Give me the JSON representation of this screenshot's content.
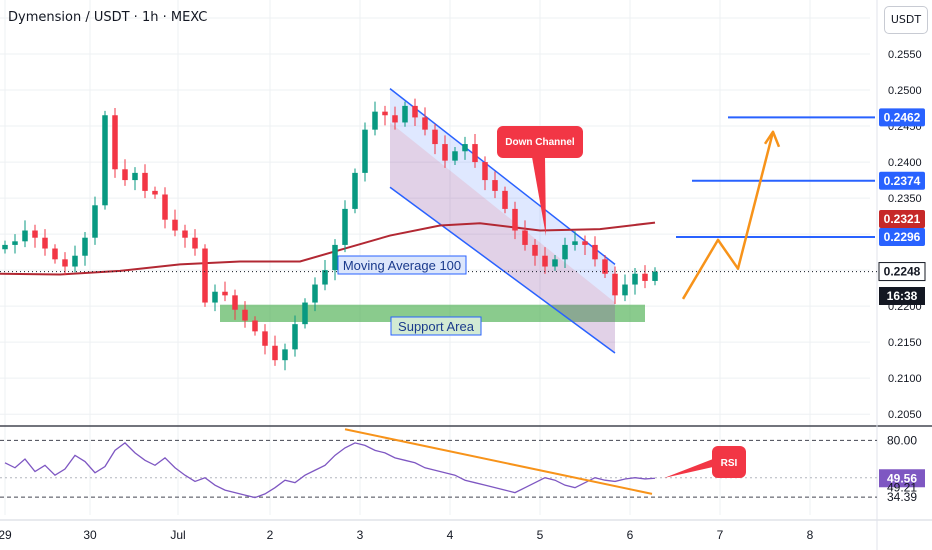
{
  "header": {
    "title": "Dymension / USDT · 1h · MEXC",
    "currency_button": "USDT"
  },
  "colors": {
    "candle_up": "#089981",
    "candle_down": "#f23645",
    "ma": "#b22833",
    "channel": "#2962ff",
    "support": "#4caf50",
    "orange": "#f7931a",
    "rsi": "#7e57c2",
    "level_blue": "#2962ff"
  },
  "chart_data": {
    "type": "candlestick",
    "y_axis": {
      "ylim": [
        0.2035,
        0.2625
      ],
      "ticks": [
        "0.2600",
        "0.2550",
        "0.2500",
        "0.2450",
        "0.2400",
        "0.2350",
        "0.2300",
        "0.2250",
        "0.2200",
        "0.2150",
        "0.2100",
        "0.2050"
      ]
    },
    "x_axis": {
      "ticks": [
        "29",
        "30",
        "Jul",
        "2",
        "3",
        "4",
        "5",
        "6",
        "7",
        "8"
      ]
    },
    "close_series_approx": [
      0.2285,
      0.229,
      0.2305,
      0.2295,
      0.228,
      0.2265,
      0.2255,
      0.227,
      0.2295,
      0.234,
      0.2465,
      0.239,
      0.2375,
      0.2385,
      0.236,
      0.2355,
      0.232,
      0.2305,
      0.2295,
      0.228,
      0.2205,
      0.222,
      0.2215,
      0.2195,
      0.218,
      0.2165,
      0.2145,
      0.2125,
      0.214,
      0.2175,
      0.2205,
      0.223,
      0.225,
      0.2285,
      0.2335,
      0.2385,
      0.2445,
      0.247,
      0.2465,
      0.2455,
      0.2478,
      0.2462,
      0.2445,
      0.2425,
      0.2402,
      0.2415,
      0.2425,
      0.24,
      0.2375,
      0.236,
      0.2335,
      0.2305,
      0.2285,
      0.227,
      0.2255,
      0.2265,
      0.2285,
      0.229,
      0.2285,
      0.2265,
      0.2245,
      0.2215,
      0.223,
      0.2245,
      0.2235,
      0.2248
    ],
    "price_labels": [
      {
        "text": "0.2462",
        "value": 0.2462,
        "color": "#2962ff"
      },
      {
        "text": "0.2374",
        "value": 0.2374,
        "color": "#2962ff"
      },
      {
        "text": "0.2321",
        "value": 0.2321,
        "color": "#c62828"
      },
      {
        "text": "0.2296",
        "value": 0.2296,
        "color": "#2962ff"
      },
      {
        "text": "0.2248",
        "value": 0.2248,
        "color": "#131722"
      },
      {
        "text": "16:38",
        "value": null,
        "color": "#131722"
      }
    ],
    "annotations": {
      "down_channel": "Down Channel",
      "moving_average": "Moving Average 100",
      "support_area": "Support Area",
      "rsi_tag": "RSI"
    },
    "rsi": {
      "ticks": [
        "80.00",
        "49.56",
        "49.21",
        "34.39"
      ],
      "levels": [
        80,
        34.39
      ],
      "current": 49.56,
      "values": [
        62,
        58,
        65,
        55,
        60,
        52,
        57,
        68,
        63,
        54,
        59,
        72,
        78,
        70,
        64,
        60,
        66,
        58,
        52,
        47,
        50,
        44,
        40,
        38,
        36,
        34,
        37,
        42,
        48,
        46,
        52,
        56,
        60,
        68,
        74,
        78,
        76,
        72,
        70,
        66,
        64,
        62,
        58,
        56,
        54,
        52,
        48,
        46,
        44,
        42,
        40,
        38,
        42,
        46,
        50,
        48,
        44,
        42,
        46,
        50,
        48,
        47,
        49,
        50,
        49,
        49.56
      ]
    }
  }
}
